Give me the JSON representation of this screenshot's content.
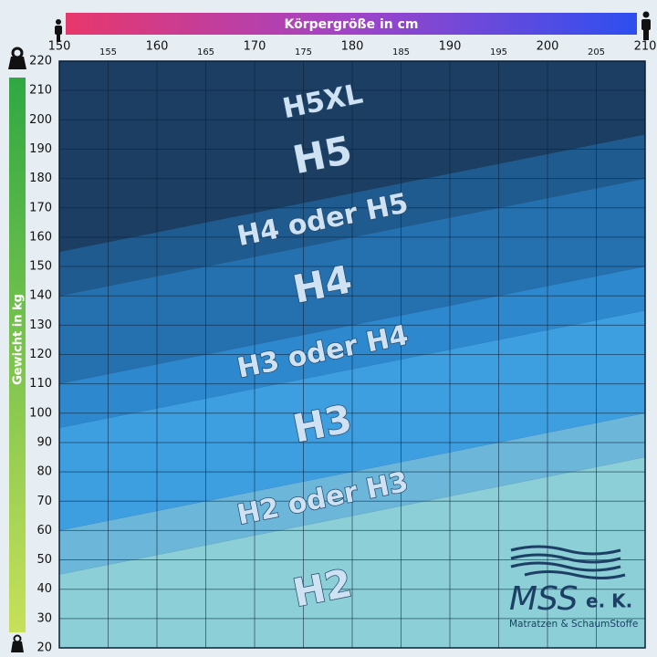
{
  "chart_data": {
    "type": "zones",
    "x_label": "Körpergröße in cm",
    "y_label": "Gewicht in kg",
    "xlim": [
      150,
      210
    ],
    "xticks": [
      150,
      155,
      160,
      165,
      170,
      175,
      180,
      185,
      190,
      195,
      200,
      205,
      210
    ],
    "ylim": [
      20,
      220
    ],
    "yticks": [
      20,
      30,
      40,
      50,
      60,
      70,
      80,
      90,
      100,
      110,
      120,
      130,
      140,
      150,
      160,
      170,
      180,
      190,
      200,
      210,
      220
    ],
    "grid": true,
    "x": [
      150,
      210
    ],
    "boundaries": [
      {
        "values": [
          45,
          85
        ]
      },
      {
        "values": [
          60,
          100
        ]
      },
      {
        "values": [
          95,
          135
        ]
      },
      {
        "values": [
          110,
          150
        ]
      },
      {
        "values": [
          140,
          180
        ]
      },
      {
        "values": [
          155,
          195
        ]
      }
    ],
    "zones": [
      {
        "name": "H2",
        "color": "#8ccfd6"
      },
      {
        "name": "H2 oder H3",
        "color": "#6cb6d9"
      },
      {
        "name": "H3",
        "color": "#3d9ee0"
      },
      {
        "name": "H3 oder H4",
        "color": "#2d88cd"
      },
      {
        "name": "H4",
        "color": "#2571b0"
      },
      {
        "name": "H4 oder H5",
        "color": "#1f5b8e"
      },
      {
        "name": "H5",
        "color": "#1b3e62"
      }
    ],
    "top_label": "H5XL"
  },
  "logo": {
    "name": "MSS",
    "suffix": "e. K.",
    "tagline": "Matratzen & SchaumStoffe"
  }
}
